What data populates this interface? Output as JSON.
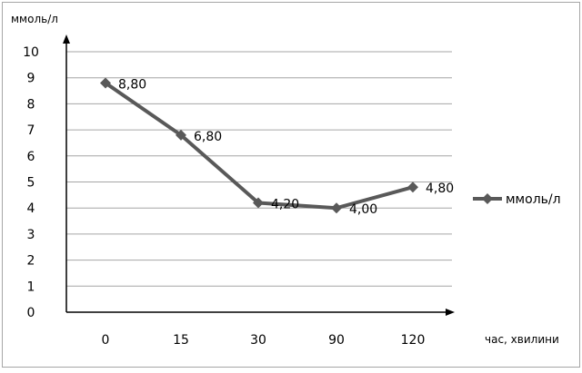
{
  "chart_data": {
    "type": "line",
    "title": "",
    "xlabel": "час, хвилини",
    "ylabel": "ммоль/л",
    "categories": [
      "0",
      "15",
      "30",
      "90",
      "120"
    ],
    "series": [
      {
        "name": "ммоль/л",
        "values": [
          8.8,
          6.8,
          4.2,
          4.0,
          4.8
        ],
        "labels": [
          "8,80",
          "6,80",
          "4,20",
          "4,00",
          "4,80"
        ]
      }
    ],
    "ylim": [
      0,
      10
    ],
    "yticks": [
      "0",
      "1",
      "2",
      "3",
      "4",
      "5",
      "6",
      "7",
      "8",
      "9",
      "10"
    ],
    "grid": true,
    "legend": "right",
    "line_color": "#595959",
    "grid_color": "#a6a6a6"
  }
}
